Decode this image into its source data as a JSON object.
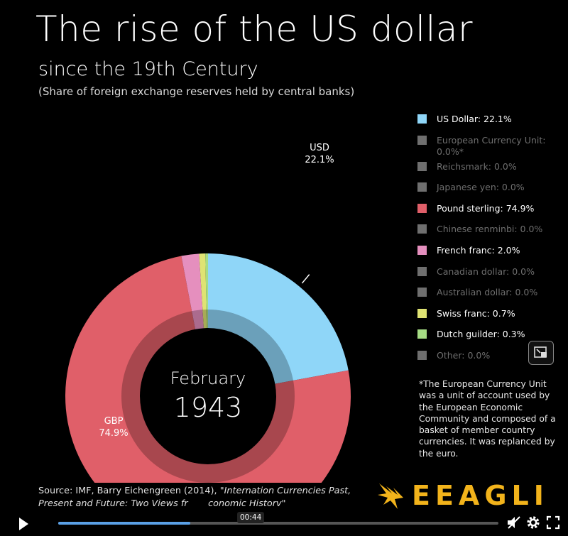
{
  "title": "The rise of the US dollar",
  "subtitle": "since the 19th Century",
  "note": "(Share of foreign exchange reserves held by central banks)",
  "chart_data": {
    "type": "pie",
    "center_label": {
      "month": "February",
      "year": "1943"
    },
    "slices": [
      {
        "name": "US Dollar",
        "value": 22.1,
        "color": "#8fd6f8"
      },
      {
        "name": "Pound sterling",
        "value": 74.9,
        "color": "#e05f69"
      },
      {
        "name": "French franc",
        "value": 2.0,
        "color": "#e58fbe"
      },
      {
        "name": "Swiss franc",
        "value": 0.7,
        "color": "#dfe373"
      },
      {
        "name": "Dutch guilder",
        "value": 0.3,
        "color": "#a6dc84"
      }
    ],
    "callouts": [
      {
        "name": "USD",
        "value": "22.1%"
      },
      {
        "name": "GBP",
        "value": "74.9%"
      }
    ]
  },
  "legend": [
    {
      "label": "US Dollar: 22.1%",
      "color": "#8fd6f8",
      "active": true
    },
    {
      "label": "European Currency Unit: 0.0%*",
      "color": "#6f6f6f",
      "active": false
    },
    {
      "label": "Reichsmark: 0.0%",
      "color": "#6f6f6f",
      "active": false
    },
    {
      "label": "Japanese yen: 0.0%",
      "color": "#6f6f6f",
      "active": false
    },
    {
      "label": "Pound sterling: 74.9%",
      "color": "#e05f69",
      "active": true
    },
    {
      "label": "Chinese renminbi: 0.0%",
      "color": "#6f6f6f",
      "active": false
    },
    {
      "label": "French franc: 2.0%",
      "color": "#e58fbe",
      "active": true
    },
    {
      "label": "Canadian dollar: 0.0%",
      "color": "#6f6f6f",
      "active": false
    },
    {
      "label": "Australian dollar: 0.0%",
      "color": "#6f6f6f",
      "active": false
    },
    {
      "label": "Swiss franc: 0.7%",
      "color": "#dfe373",
      "active": true
    },
    {
      "label": "Dutch guilder: 0.3%",
      "color": "#a6dc84",
      "active": true
    },
    {
      "label": "Other: 0.0%",
      "color": "#6f6f6f",
      "active": false
    }
  ],
  "footnote": "*The European Currency Unit was a unit of account used by the European Economic Community and composed of a basket of member country currencies. It was replanced by the euro.",
  "source": {
    "prefix": "Source: IMF, Barry Eichengreen (2014), ",
    "title": "\"Internation Currencies Past, Present and Future: Two Views fr",
    "title_end": "conomic Historv\""
  },
  "logo": {
    "text": "EEAGLI",
    "color": "#f2b31b"
  },
  "player": {
    "time": "00:44",
    "progress": 0.3,
    "icons": [
      "play-icon",
      "mute-icon",
      "settings-icon",
      "fullscreen-icon",
      "pip-icon"
    ]
  }
}
